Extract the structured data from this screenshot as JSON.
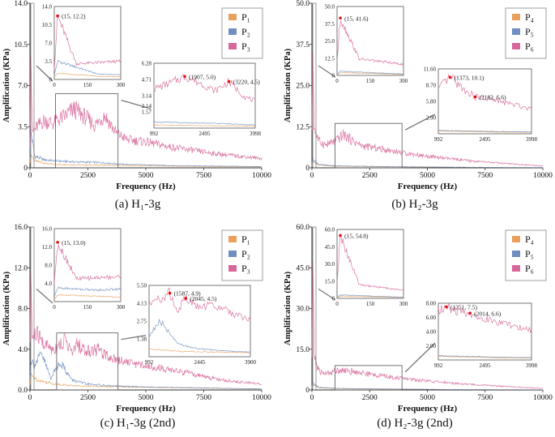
{
  "colors": {
    "p1": "#e8a05a",
    "p2": "#6f8fc0",
    "p3": "#d7679a",
    "axis": "#333333",
    "box": "#555555",
    "peak": "#e01010"
  },
  "chart_data": [
    {
      "id": "a",
      "type": "line",
      "caption": "(a)  H₁-3g",
      "xlabel": "Frequency (Hz)",
      "ylabel": "Amplification (KPa)",
      "xlim": [
        0,
        10000
      ],
      "ylim": [
        0,
        14.0
      ],
      "x_ticks": [
        0,
        2500,
        5000,
        7500,
        10000
      ],
      "x_tick_labels": [
        "0",
        "2500",
        "5000",
        "7500",
        "10000"
      ],
      "y_ticks": [
        0,
        3.5,
        7.0,
        10.5,
        14.0
      ],
      "y_tick_labels": [
        "0",
        "3.5",
        "7.0",
        "10.5",
        "14.0"
      ],
      "legend": [
        "P₁",
        "P₂",
        "P₃"
      ],
      "series": [
        {
          "name": "P₁",
          "color": "p1",
          "x": [
            0,
            15,
            200,
            600,
            1000,
            2000,
            4000,
            6000,
            8000,
            10000
          ],
          "values": [
            0.5,
            1.2,
            0.6,
            0.4,
            0.3,
            0.25,
            0.2,
            0.15,
            0.1,
            0.1
          ]
        },
        {
          "name": "P₂",
          "color": "p2",
          "x": [
            0,
            15,
            200,
            600,
            1000,
            2000,
            3000,
            4000,
            6000,
            8000,
            10000
          ],
          "values": [
            0.8,
            3.5,
            1.0,
            0.7,
            0.6,
            0.5,
            0.45,
            0.3,
            0.2,
            0.15,
            0.1
          ]
        },
        {
          "name": "P₃",
          "color": "p3",
          "x": [
            0,
            15,
            100,
            300,
            600,
            1000,
            1500,
            1907,
            2400,
            2800,
            3220,
            3700,
            4200,
            5000,
            6000,
            7000,
            8000,
            9000,
            10000
          ],
          "values": [
            2.0,
            12.2,
            3.0,
            3.5,
            4.0,
            3.8,
            4.4,
            5.0,
            4.3,
            3.6,
            4.5,
            3.0,
            2.4,
            2.2,
            1.8,
            1.5,
            1.2,
            1.0,
            0.8
          ]
        }
      ],
      "inset_left": {
        "xlim": [
          0,
          300
        ],
        "ylim": [
          0,
          14.0
        ],
        "x_ticks": [
          0,
          150,
          300
        ],
        "x_tick_labels": [
          "0",
          "150",
          "300"
        ],
        "y_ticks": [
          0,
          3.5,
          7.0,
          10.5,
          14.0
        ],
        "y_tick_labels": [
          "0",
          "3.5",
          "7.0",
          "10.5",
          "14.0"
        ],
        "peak": {
          "x": 15,
          "y": 12.2,
          "label": "(15, 12.2)"
        }
      },
      "inset_right": {
        "xlim": [
          992,
          3998
        ],
        "ylim": [
          0,
          6.28
        ],
        "x_ticks": [
          992,
          2495,
          3998
        ],
        "x_tick_labels": [
          "992",
          "2495",
          "3998"
        ],
        "y_ticks": [
          1.57,
          2.14,
          3.14,
          4.71,
          6.28
        ],
        "y_tick_labels": [
          "1.57",
          "2.14",
          "3.14",
          "4.71",
          "6.28"
        ],
        "peaks": [
          {
            "x": 1907,
            "y": 5.0,
            "label": "(1907, 5.0)"
          },
          {
            "x": 3220,
            "y": 4.5,
            "label": "(3220, 4.5)"
          }
        ]
      }
    },
    {
      "id": "b",
      "type": "line",
      "caption": "(b)  H₂-3g",
      "xlabel": "Frequency (Hz)",
      "ylabel": "Amplification (KPa)",
      "xlim": [
        0,
        10000
      ],
      "ylim": [
        0,
        50.0
      ],
      "x_ticks": [
        0,
        2500,
        5000,
        7500,
        10000
      ],
      "x_tick_labels": [
        "0",
        "2500",
        "5000",
        "7500",
        "10000"
      ],
      "y_ticks": [
        0,
        12.5,
        25.0,
        37.5,
        50.0
      ],
      "y_tick_labels": [
        "0",
        "12.5",
        "25.0",
        "37.5",
        "50.0"
      ],
      "legend": [
        "P₄",
        "P₅",
        "P₆"
      ],
      "series": [
        {
          "name": "P₄",
          "color": "p1",
          "x": [
            0,
            15,
            300,
            1000,
            3000,
            6000,
            10000
          ],
          "values": [
            0.5,
            2.0,
            0.8,
            0.5,
            0.3,
            0.2,
            0.1
          ]
        },
        {
          "name": "P₅",
          "color": "p2",
          "x": [
            0,
            15,
            300,
            1000,
            3000,
            6000,
            10000
          ],
          "values": [
            0.8,
            3.0,
            1.0,
            0.6,
            0.4,
            0.2,
            0.1
          ]
        },
        {
          "name": "P₆",
          "color": "p6",
          "x": [
            0,
            15,
            100,
            300,
            600,
            1000,
            1373,
            1800,
            2182,
            2600,
            3200,
            4000,
            5000,
            6000,
            7000,
            8000,
            9000,
            10000
          ],
          "values": [
            10,
            41.6,
            12,
            8,
            7,
            8,
            10.1,
            8,
            6.6,
            6.2,
            5.5,
            4.5,
            3.5,
            2.7,
            2.0,
            1.5,
            1.0,
            0.6
          ]
        }
      ],
      "inset_left": {
        "xlim": [
          0,
          300
        ],
        "ylim": [
          0,
          50.0
        ],
        "x_ticks": [
          0,
          150,
          300
        ],
        "x_tick_labels": [
          "0",
          "150",
          "300"
        ],
        "y_ticks": [
          0,
          12.5,
          25.0,
          37.5,
          50.0
        ],
        "y_tick_labels": [
          "0",
          "12.5",
          "25.0",
          "37.5",
          "50.0"
        ],
        "peak": {
          "x": 15,
          "y": 41.6,
          "label": "(15, 41.6)"
        }
      },
      "inset_right": {
        "xlim": [
          992,
          3998
        ],
        "ylim": [
          0,
          11.6
        ],
        "x_ticks": [
          992,
          2495,
          3998
        ],
        "x_tick_labels": [
          "992",
          "2495",
          "3998"
        ],
        "y_ticks": [
          2.9,
          5.8,
          8.7,
          11.6
        ],
        "y_tick_labels": [
          "2.90",
          "5.80",
          "8.70",
          "11.60"
        ],
        "peaks": [
          {
            "x": 1373,
            "y": 10.1,
            "label": "(1373, 10.1)"
          },
          {
            "x": 2182,
            "y": 6.6,
            "label": "(2182, 6.6)"
          }
        ]
      }
    },
    {
      "id": "c",
      "type": "line",
      "caption": "(c)  H₁-3g (2nd)",
      "xlabel": "Frequency (Hz)",
      "ylabel": "Amplification (KPa)",
      "xlim": [
        0,
        10000
      ],
      "ylim": [
        0,
        16.0
      ],
      "x_ticks": [
        0,
        2500,
        5000,
        7500,
        10000
      ],
      "x_tick_labels": [
        "0",
        "2500",
        "5000",
        "7500",
        "10000"
      ],
      "y_ticks": [
        0,
        4.0,
        8.0,
        12.0,
        16.0
      ],
      "y_tick_labels": [
        "0.0",
        "4.0",
        "8.0",
        "12.0",
        "16.0"
      ],
      "legend": [
        "P₁",
        "P₂",
        "P₃"
      ],
      "series": [
        {
          "name": "P₁",
          "color": "p1",
          "x": [
            0,
            15,
            300,
            1000,
            2000,
            4000,
            7000,
            10000
          ],
          "values": [
            0.5,
            1.5,
            1.0,
            0.6,
            0.4,
            0.3,
            0.2,
            0.1
          ]
        },
        {
          "name": "P₂",
          "color": "p2",
          "x": [
            0,
            15,
            200,
            500,
            900,
            1300,
            1800,
            2400,
            3500,
            5000,
            10000
          ],
          "values": [
            1.0,
            3.0,
            2.5,
            3.5,
            1.2,
            2.8,
            1.0,
            0.6,
            0.4,
            0.3,
            0.1
          ]
        },
        {
          "name": "P₃",
          "color": "p3",
          "x": [
            0,
            15,
            100,
            300,
            600,
            1000,
            1300,
            1587,
            1800,
            2045,
            2400,
            2900,
            3500,
            4500,
            5500,
            6500,
            7500,
            8500,
            10000
          ],
          "values": [
            4.0,
            13.0,
            5.0,
            5.5,
            4.5,
            4.0,
            4.5,
            4.9,
            3.5,
            4.5,
            3.8,
            4.0,
            3.2,
            2.6,
            2.2,
            1.8,
            1.3,
            0.9,
            0.6
          ]
        }
      ],
      "inset_left": {
        "xlim": [
          0,
          300
        ],
        "ylim": [
          0,
          16.0
        ],
        "x_ticks": [
          0,
          150,
          300
        ],
        "x_tick_labels": [
          "0",
          "150",
          "300"
        ],
        "y_ticks": [
          4.0,
          8.0,
          12.0,
          16.0
        ],
        "y_tick_labels": [
          "4.0",
          "8.0",
          "12.0",
          "16.0"
        ],
        "peak": {
          "x": 15,
          "y": 13.0,
          "label": "(15, 13.0)"
        }
      },
      "inset_right": {
        "xlim": [
          992,
          3900
        ],
        "ylim": [
          0,
          5.5
        ],
        "x_ticks": [
          992,
          2445,
          3900
        ],
        "x_tick_labels": [
          "992",
          "2445",
          "3900"
        ],
        "y_ticks": [
          1.38,
          2.75,
          4.13,
          5.5
        ],
        "y_tick_labels": [
          "1.38",
          "2.75",
          "4.13",
          "5.50"
        ],
        "peaks": [
          {
            "x": 1587,
            "y": 4.9,
            "label": "(1587, 4.9)"
          },
          {
            "x": 2045,
            "y": 4.5,
            "label": "(2045, 4.5)"
          }
        ]
      }
    },
    {
      "id": "d",
      "type": "line",
      "caption": "(d)  H₂-3g (2nd)",
      "xlabel": "Frequency (Hz)",
      "ylabel": "Amplification (KPa)",
      "xlim": [
        0,
        10000
      ],
      "ylim": [
        0,
        60.0
      ],
      "x_ticks": [
        0,
        2500,
        5000,
        7500,
        10000
      ],
      "x_tick_labels": [
        "0",
        "2500",
        "5000",
        "7500",
        "10000"
      ],
      "y_ticks": [
        0,
        15.0,
        30.0,
        45.0,
        60.0
      ],
      "y_tick_labels": [
        "0",
        "15.0",
        "30.0",
        "45.0",
        "60.0"
      ],
      "legend": [
        "P₄",
        "P₅",
        "P₆"
      ],
      "series": [
        {
          "name": "P₄",
          "color": "p1",
          "x": [
            0,
            15,
            300,
            1000,
            3000,
            6000,
            10000
          ],
          "values": [
            0.5,
            2.0,
            0.8,
            0.5,
            0.3,
            0.2,
            0.1
          ]
        },
        {
          "name": "P₅",
          "color": "p2",
          "x": [
            0,
            15,
            300,
            1000,
            3000,
            6000,
            10000
          ],
          "values": [
            0.8,
            3.0,
            1.0,
            0.6,
            0.4,
            0.2,
            0.1
          ]
        },
        {
          "name": "P₆",
          "color": "p6",
          "x": [
            0,
            15,
            100,
            300,
            600,
            1000,
            1251,
            1600,
            2014,
            2500,
            3200,
            4000,
            5000,
            6000,
            7000,
            8000,
            9000,
            10000
          ],
          "values": [
            12,
            54.8,
            12,
            7,
            6,
            7,
            7.5,
            6.8,
            6.6,
            5.8,
            5.0,
            4.2,
            3.3,
            2.6,
            2.0,
            1.5,
            1.0,
            0.6
          ]
        }
      ],
      "inset_left": {
        "xlim": [
          0,
          300
        ],
        "ylim": [
          0,
          60.0
        ],
        "x_ticks": [
          0,
          150,
          300
        ],
        "x_tick_labels": [
          "0",
          "150",
          "300"
        ],
        "y_ticks": [
          0,
          15.0,
          30.0,
          45.0,
          60.0
        ],
        "y_tick_labels": [
          "0",
          "15.0",
          "30.0",
          "45.0",
          "60.0"
        ],
        "peak": {
          "x": 15,
          "y": 54.8,
          "label": "(15, 54.8)"
        }
      },
      "inset_right": {
        "xlim": [
          992,
          3998
        ],
        "ylim": [
          0,
          8.0
        ],
        "x_ticks": [
          992,
          2495,
          3998
        ],
        "x_tick_labels": [
          "992",
          "2495",
          "3998"
        ],
        "y_ticks": [
          2.0,
          4.0,
          6.0,
          8.0
        ],
        "y_tick_labels": [
          "2.00",
          "4.00",
          "6.00",
          "8.00"
        ],
        "peaks": [
          {
            "x": 1251,
            "y": 7.5,
            "label": "(1251, 7.5)"
          },
          {
            "x": 2014,
            "y": 6.6,
            "label": "(2014, 6.6)"
          }
        ]
      }
    }
  ]
}
